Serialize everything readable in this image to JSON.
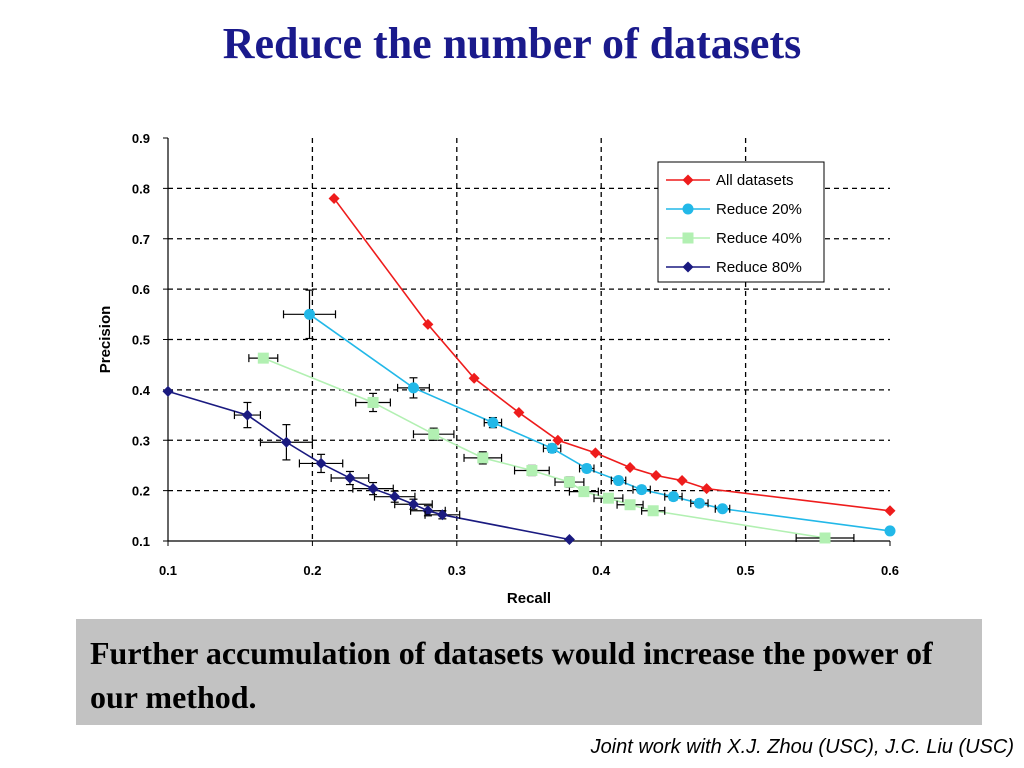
{
  "slide": {
    "title": "Reduce the number of datasets",
    "callout": "Further accumulation of datasets would  increase the power of our method.",
    "credit": "Joint work with X.J. Zhou (USC), J.C. Liu (USC)"
  },
  "chart_data": {
    "type": "line",
    "title": "",
    "xlabel": "Recall",
    "ylabel": "Precision",
    "xlim": [
      0.1,
      0.6
    ],
    "ylim": [
      0.1,
      0.9
    ],
    "xticks": [
      "0.1",
      "0.2",
      "0.3",
      "0.4",
      "0.5",
      "0.6"
    ],
    "yticks": [
      "0.1",
      "0.2",
      "0.3",
      "0.4",
      "0.5",
      "0.6",
      "0.7",
      "0.8",
      "0.9"
    ],
    "grid": "dashed",
    "legend_position": "top-right",
    "series": [
      {
        "name": "All datasets",
        "color": "#ee1c1c",
        "marker": "diamond",
        "points": [
          [
            0.215,
            0.78
          ],
          [
            0.28,
            0.53
          ],
          [
            0.312,
            0.423
          ],
          [
            0.343,
            0.355
          ],
          [
            0.37,
            0.3
          ],
          [
            0.396,
            0.275
          ],
          [
            0.42,
            0.246
          ],
          [
            0.438,
            0.23
          ],
          [
            0.456,
            0.22
          ],
          [
            0.473,
            0.204
          ],
          [
            0.6,
            0.16
          ]
        ],
        "xerr": [],
        "yerr": []
      },
      {
        "name": "Reduce 20%",
        "color": "#22b8e8",
        "marker": "circle",
        "points": [
          [
            0.198,
            0.55
          ],
          [
            0.27,
            0.404
          ],
          [
            0.325,
            0.335
          ],
          [
            0.366,
            0.284
          ],
          [
            0.39,
            0.244
          ],
          [
            0.412,
            0.22
          ],
          [
            0.428,
            0.202
          ],
          [
            0.45,
            0.188
          ],
          [
            0.468,
            0.175
          ],
          [
            0.484,
            0.164
          ],
          [
            0.6,
            0.12
          ]
        ],
        "xerr": [
          0.018,
          0.011,
          0.006,
          0.006,
          0.005,
          0.005,
          0.006,
          0.006,
          0.006,
          0.005,
          0
        ],
        "yerr": [
          0.048,
          0.02,
          0.01,
          0.008,
          0.007,
          0.007,
          0.007,
          0.007,
          0.007,
          0.006,
          0
        ]
      },
      {
        "name": "Reduce 40%",
        "color": "#b2f0b2",
        "marker": "square",
        "points": [
          [
            0.166,
            0.463
          ],
          [
            0.242,
            0.375
          ],
          [
            0.284,
            0.312
          ],
          [
            0.318,
            0.265
          ],
          [
            0.352,
            0.24
          ],
          [
            0.378,
            0.217
          ],
          [
            0.388,
            0.198
          ],
          [
            0.405,
            0.185
          ],
          [
            0.42,
            0.172
          ],
          [
            0.436,
            0.16
          ],
          [
            0.555,
            0.106
          ]
        ],
        "xerr": [
          0.01,
          0.012,
          0.014,
          0.013,
          0.012,
          0.01,
          0.01,
          0.01,
          0.009,
          0.008,
          0.02
        ],
        "yerr": [
          0.008,
          0.018,
          0.012,
          0.012,
          0.01,
          0.01,
          0.008,
          0.008,
          0.008,
          0.008,
          0.006
        ]
      },
      {
        "name": "Reduce 80%",
        "color": "#1a1a80",
        "marker": "diamond",
        "points": [
          [
            0.1,
            0.397
          ],
          [
            0.155,
            0.35
          ],
          [
            0.182,
            0.296
          ],
          [
            0.206,
            0.254
          ],
          [
            0.226,
            0.225
          ],
          [
            0.242,
            0.204
          ],
          [
            0.257,
            0.188
          ],
          [
            0.27,
            0.173
          ],
          [
            0.28,
            0.16
          ],
          [
            0.29,
            0.152
          ],
          [
            0.378,
            0.103
          ]
        ],
        "xerr": [
          0,
          0.009,
          0.018,
          0.015,
          0.013,
          0.014,
          0.014,
          0.013,
          0.012,
          0.012,
          0
        ],
        "yerr": [
          0,
          0.025,
          0.035,
          0.018,
          0.013,
          0.012,
          0.011,
          0.01,
          0.01,
          0.008,
          0
        ]
      }
    ]
  }
}
